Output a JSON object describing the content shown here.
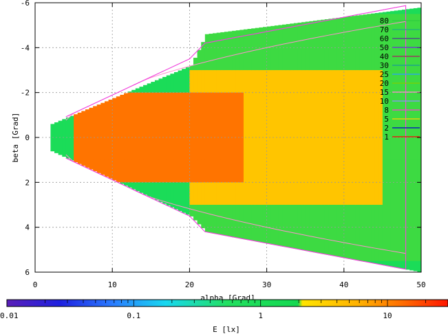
{
  "chart_data": {
    "type": "heatmap",
    "title": "",
    "xlabel": "alpha [Grad]",
    "ylabel": "beta [Grad]",
    "xlim": [
      0,
      50
    ],
    "ylim": [
      6,
      -6
    ],
    "x_ticks": [
      "0",
      "10",
      "20",
      "30",
      "40",
      "50"
    ],
    "y_ticks": [
      "-6",
      "-4",
      "-2",
      "0",
      "2",
      "4",
      "6"
    ],
    "grid": true,
    "colorbar": {
      "label": "E [lx]",
      "scale": "log",
      "range": [
        0.01,
        30
      ],
      "tick_labels": [
        "0.01",
        "0.1",
        "1",
        "10"
      ]
    },
    "legend": {
      "placement": "top-right",
      "entries": [
        "80",
        "70",
        "60",
        "50",
        "40",
        "30",
        "25",
        "20",
        "15",
        "10",
        "8",
        "5",
        "2",
        "1"
      ],
      "colors": [
        "#2ecc40",
        "#20b080",
        "#4b3d8f",
        "#6c2bd9",
        "#aa1a66",
        "#1a9a9a",
        "#2aa0ff",
        "#7fd000",
        "#ff8fd0",
        "#9090ff",
        "#ff3ad8",
        "#ffd000",
        "#0000cc",
        "#ff0000"
      ]
    },
    "beam_boundary": [
      {
        "x": 2,
        "y_min": -0.6,
        "y_max": 0.6
      },
      {
        "x": 20,
        "y_min": -3.2,
        "y_max": 3.5
      },
      {
        "x": 22,
        "y_min": -4.6,
        "y_max": 4.2
      },
      {
        "x": 50,
        "y_min": -5.8,
        "y_max": 6.0
      }
    ],
    "zones": [
      {
        "level": 12,
        "x_from": 5,
        "x_to": 27,
        "half_height": 2.0
      },
      {
        "level": 4,
        "x_from": 20,
        "x_to": 45,
        "half_height": 3.0
      },
      {
        "level": 2,
        "x_from": 20,
        "x_to": 50,
        "half_height": 5.5
      }
    ]
  }
}
